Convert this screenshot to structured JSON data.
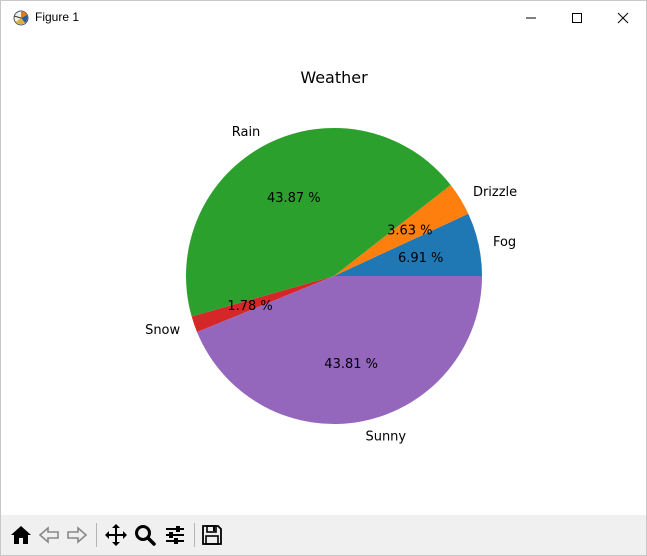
{
  "window": {
    "title": "Figure 1",
    "icon": "matplotlib-icon",
    "controls": [
      "minimize-icon",
      "maximize-icon",
      "close-icon"
    ]
  },
  "toolbar": {
    "tools": [
      {
        "name": "home-icon"
      },
      {
        "name": "back-arrow-icon"
      },
      {
        "name": "forward-arrow-icon"
      },
      {
        "name": "pan-move-icon"
      },
      {
        "name": "zoom-magnifier-icon"
      },
      {
        "name": "configure-subplots-icon"
      },
      {
        "name": "save-disk-icon"
      }
    ]
  },
  "chart_data": {
    "type": "pie",
    "title": "Weather",
    "labels": [
      "Fog",
      "Drizzle",
      "Rain",
      "Snow",
      "Sunny"
    ],
    "values": [
      6.91,
      3.63,
      43.87,
      1.78,
      43.81
    ],
    "pct_labels": [
      "6.91 %",
      "3.63 %",
      "43.87 %",
      "1.78 %",
      "43.81 %"
    ],
    "colors": [
      "#1f77b4",
      "#ff7f0e",
      "#2ca02c",
      "#d62728",
      "#9467bd"
    ],
    "start_angle": 0,
    "direction": "counterclockwise"
  }
}
